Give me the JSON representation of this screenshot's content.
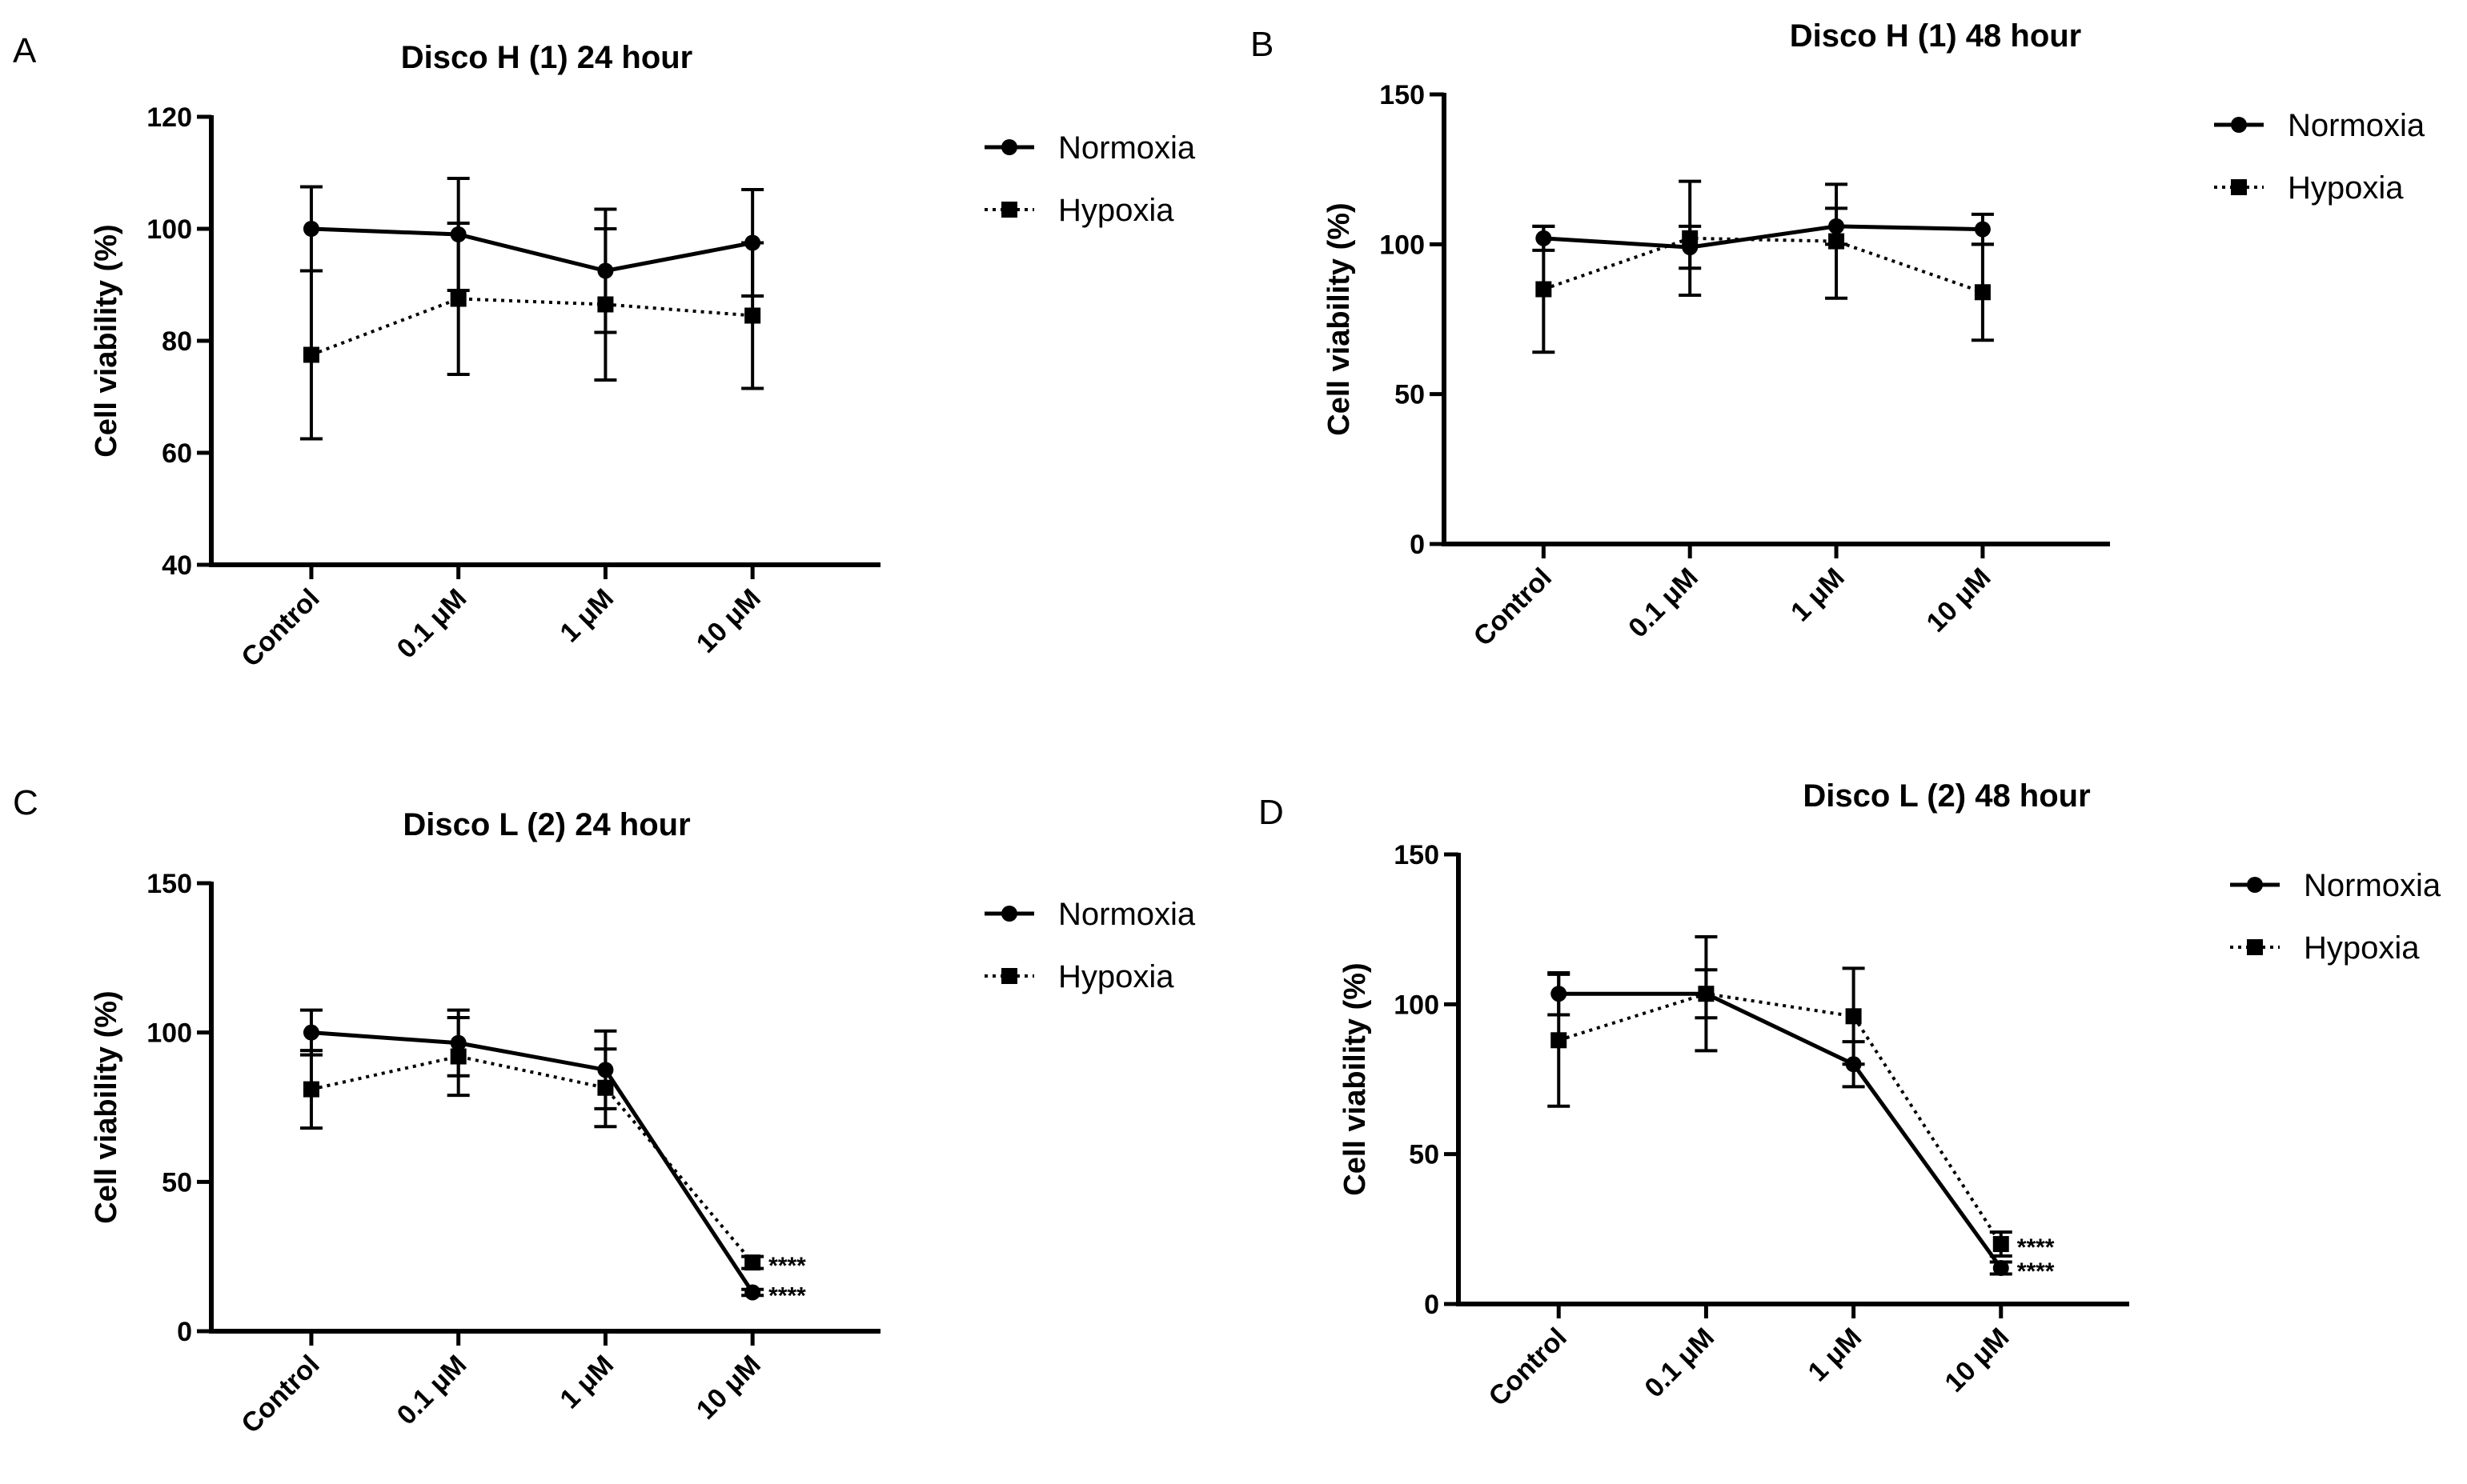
{
  "chart_data": [
    {
      "type": "line",
      "panel": "A",
      "title": "Disco H (1) 24 hour",
      "xlabel": "",
      "ylabel": "Cell viability (%)",
      "categories": [
        "Control",
        "0.1 μM",
        "1 μM",
        "10 μM"
      ],
      "ylim": [
        40,
        120
      ],
      "yticks": [
        40,
        60,
        80,
        100,
        120
      ],
      "legend": "right",
      "series": [
        {
          "name": "Normoxia",
          "marker": "circle",
          "line": "solid",
          "values": [
            100,
            99,
            92.5,
            97.5
          ],
          "errors": [
            7.5,
            10,
            11,
            9.5
          ]
        },
        {
          "name": "Hypoxia",
          "marker": "square",
          "line": "dotted",
          "values": [
            77.5,
            87.5,
            86.5,
            84.5
          ],
          "errors": [
            15,
            13.5,
            13.5,
            13
          ]
        }
      ],
      "annotations": []
    },
    {
      "type": "line",
      "panel": "B",
      "title": "Disco H (1) 48 hour",
      "xlabel": "",
      "ylabel": "Cell viability (%)",
      "categories": [
        "Control",
        "0.1 μM",
        "1 μM",
        "10 μM"
      ],
      "ylim": [
        0,
        150
      ],
      "yticks": [
        0,
        50,
        100,
        150
      ],
      "legend": "right",
      "series": [
        {
          "name": "Normoxia",
          "marker": "circle",
          "line": "solid",
          "values": [
            102,
            99,
            106,
            105
          ],
          "errors": [
            4,
            7,
            6,
            5
          ]
        },
        {
          "name": "Hypoxia",
          "marker": "square",
          "line": "dotted",
          "values": [
            85,
            102,
            101,
            84
          ],
          "errors": [
            21,
            19,
            19,
            16
          ]
        }
      ],
      "annotations": []
    },
    {
      "type": "line",
      "panel": "C",
      "title": "Disco L (2) 24 hour",
      "xlabel": "",
      "ylabel": "Cell viability (%)",
      "categories": [
        "Control",
        "0.1 μM",
        "1 μM",
        "10 μM"
      ],
      "ylim": [
        0,
        150
      ],
      "yticks": [
        0,
        50,
        100,
        150
      ],
      "legend": "right",
      "series": [
        {
          "name": "Normoxia",
          "marker": "circle",
          "line": "solid",
          "values": [
            100,
            96.5,
            87.5,
            13
          ],
          "errors": [
            7.5,
            11,
            13,
            1
          ]
        },
        {
          "name": "Hypoxia",
          "marker": "square",
          "line": "dotted",
          "values": [
            81,
            92,
            81.5,
            23
          ],
          "errors": [
            13,
            13,
            13,
            2
          ]
        }
      ],
      "annotations": [
        {
          "text": "****",
          "series": "Hypoxia",
          "category": "10 μM"
        },
        {
          "text": "****",
          "series": "Normoxia",
          "category": "10 μM"
        }
      ]
    },
    {
      "type": "line",
      "panel": "D",
      "title": "Disco L (2) 48 hour",
      "xlabel": "",
      "ylabel": "Cell viability (%)",
      "categories": [
        "Control",
        "0.1 μM",
        "1 μM",
        "10 μM"
      ],
      "ylim": [
        0,
        150
      ],
      "yticks": [
        0,
        50,
        100,
        150
      ],
      "legend": "right",
      "series": [
        {
          "name": "Normoxia",
          "marker": "circle",
          "line": "solid",
          "values": [
            103.5,
            103.5,
            80,
            12
          ],
          "errors": [
            7,
            8,
            7.5,
            2
          ]
        },
        {
          "name": "Hypoxia",
          "marker": "square",
          "line": "dotted",
          "values": [
            88,
            103.5,
            96,
            20
          ],
          "errors": [
            22,
            19,
            16,
            4
          ]
        }
      ],
      "annotations": [
        {
          "text": "****",
          "series": "Hypoxia",
          "category": "10 μM"
        },
        {
          "text": "****",
          "series": "Normoxia",
          "category": "10 μM"
        }
      ]
    }
  ]
}
